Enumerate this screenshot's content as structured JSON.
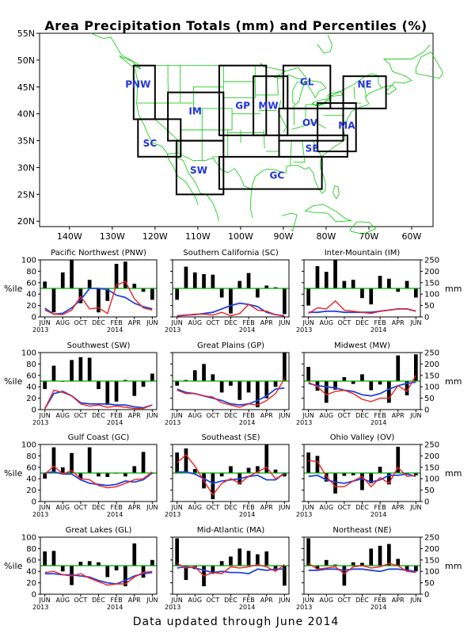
{
  "title": "Area Precipitation Totals (mm) and Percentiles (%)",
  "footer": "Data updated through June 2014",
  "map": {
    "lat_labels": [
      "55N",
      "50N",
      "45N",
      "40N",
      "35N",
      "30N",
      "25N",
      "20N"
    ],
    "lon_labels": [
      "140W",
      "130W",
      "120W",
      "110W",
      "100W",
      "90W",
      "80W",
      "70W",
      "60W"
    ],
    "regions": [
      {
        "code": "PNW",
        "name": "Pacific Northwest"
      },
      {
        "code": "SC",
        "name": "Southern California"
      },
      {
        "code": "IM",
        "name": "Inter-Mountain"
      },
      {
        "code": "SW",
        "name": "Southwest"
      },
      {
        "code": "GP",
        "name": "Great Plains"
      },
      {
        "code": "MW",
        "name": "Midwest"
      },
      {
        "code": "GC",
        "name": "Gulf Coast"
      },
      {
        "code": "SE",
        "name": "Southeast"
      },
      {
        "code": "OV",
        "name": "Ohio Valley"
      },
      {
        "code": "GL",
        "name": "Great Lakes"
      },
      {
        "code": "MA",
        "name": "Mid-Atlantic"
      },
      {
        "code": "NE",
        "name": "Northeast"
      }
    ],
    "colors": {
      "region_label": "#2233dd",
      "coast": "#22cc22",
      "box": "#000000"
    }
  },
  "panel_labels": {
    "left_unit": "%ile",
    "right_unit": "mm",
    "y_left_ticks": [
      "0",
      "20",
      "40",
      "60",
      "80",
      "100"
    ],
    "y_right_ticks": [
      "0",
      "50",
      "100",
      "150",
      "200",
      "250"
    ],
    "x_ticks": [
      "JUN",
      "AUG",
      "OCT",
      "DEC",
      "FEB",
      "APR",
      "JUN"
    ],
    "year_start": "2013",
    "year_mid": "2014"
  },
  "colors": {
    "bars": "#000000",
    "observed": "#ee2222",
    "normal": "#2244dd",
    "median": "#00aa00"
  },
  "chart_data": [
    {
      "type": "bar",
      "title": "Pacific Northwest (PNW)",
      "months": [
        "2013-06",
        "2013-07",
        "2013-08",
        "2013-09",
        "2013-10",
        "2013-11",
        "2013-12",
        "2014-01",
        "2014-02",
        "2014-03",
        "2014-04",
        "2014-05",
        "2014-06"
      ],
      "percentile": [
        62,
        8,
        78,
        100,
        24,
        65,
        8,
        28,
        93,
        97,
        58,
        44,
        30
      ],
      "precip_mm": [
        30,
        12,
        10,
        30,
        90,
        35,
        40,
        15,
        140,
        155,
        80,
        40,
        30
      ],
      "normal_mm": [
        38,
        12,
        16,
        40,
        75,
        125,
        125,
        120,
        95,
        85,
        60,
        45,
        35
      ]
    },
    {
      "type": "bar",
      "title": "Southern California (SC)",
      "months": [
        "2013-06",
        "2013-07",
        "2013-08",
        "2013-09",
        "2013-10",
        "2013-11",
        "2013-12",
        "2014-01",
        "2014-02",
        "2014-03",
        "2014-04",
        "2014-05",
        "2014-06"
      ],
      "percentile": [
        30,
        88,
        78,
        75,
        74,
        34,
        6,
        63,
        77,
        34,
        55,
        52,
        5
      ],
      "precip_mm": [
        3,
        8,
        12,
        12,
        8,
        20,
        5,
        15,
        55,
        30,
        25,
        10,
        3
      ],
      "normal_mm": [
        5,
        8,
        10,
        15,
        20,
        35,
        50,
        60,
        55,
        45,
        20,
        10,
        5
      ]
    },
    {
      "type": "bar",
      "title": "Inter-Mountain (IM)",
      "months": [
        "2013-06",
        "2013-07",
        "2013-08",
        "2013-09",
        "2013-10",
        "2013-11",
        "2013-12",
        "2014-01",
        "2014-02",
        "2014-03",
        "2014-04",
        "2014-05",
        "2014-06"
      ],
      "percentile": [
        20,
        89,
        79,
        100,
        63,
        65,
        33,
        22,
        72,
        67,
        44,
        63,
        34
      ],
      "precip_mm": [
        15,
        40,
        35,
        70,
        30,
        25,
        20,
        15,
        25,
        30,
        35,
        35,
        25
      ],
      "normal_mm": [
        20,
        20,
        25,
        25,
        20,
        20,
        20,
        20,
        25,
        30,
        35,
        35,
        25
      ]
    },
    {
      "type": "bar",
      "title": "Southwest (SW)",
      "months": [
        "2013-06",
        "2013-07",
        "2013-08",
        "2013-09",
        "2013-10",
        "2013-11",
        "2013-12",
        "2014-01",
        "2014-02",
        "2014-03",
        "2014-04",
        "2014-05",
        "2014-06"
      ],
      "percentile": [
        36,
        77,
        50,
        87,
        92,
        91,
        36,
        8,
        14,
        52,
        24,
        40,
        63
      ],
      "precip_mm": [
        3,
        85,
        75,
        60,
        25,
        15,
        20,
        10,
        15,
        10,
        5,
        5,
        20
      ],
      "normal_mm": [
        5,
        70,
        80,
        60,
        30,
        25,
        25,
        25,
        20,
        20,
        12,
        8,
        20
      ]
    },
    {
      "type": "bar",
      "title": "Great Plains (GP)",
      "months": [
        "2013-06",
        "2013-07",
        "2013-08",
        "2013-09",
        "2013-10",
        "2013-11",
        "2013-12",
        "2014-01",
        "2014-02",
        "2014-03",
        "2014-04",
        "2014-05",
        "2014-06"
      ],
      "percentile": [
        42,
        52,
        69,
        80,
        62,
        30,
        42,
        17,
        30,
        4,
        20,
        40,
        100
      ],
      "precip_mm": [
        85,
        70,
        70,
        60,
        55,
        30,
        20,
        10,
        25,
        20,
        40,
        70,
        135
      ],
      "normal_mm": [
        90,
        75,
        70,
        60,
        50,
        40,
        25,
        20,
        25,
        40,
        60,
        90,
        95
      ]
    },
    {
      "type": "bar",
      "title": "Midwest (MW)",
      "months": [
        "2013-06",
        "2013-07",
        "2013-08",
        "2013-09",
        "2013-10",
        "2013-11",
        "2013-12",
        "2014-01",
        "2014-02",
        "2014-03",
        "2014-04",
        "2014-05",
        "2014-06"
      ],
      "percentile": [
        75,
        33,
        12,
        35,
        57,
        45,
        62,
        34,
        44,
        12,
        95,
        25,
        97
      ],
      "precip_mm": [
        120,
        100,
        65,
        80,
        85,
        70,
        45,
        35,
        50,
        50,
        105,
        80,
        150
      ],
      "normal_mm": [
        115,
        105,
        100,
        95,
        85,
        80,
        65,
        60,
        70,
        90,
        105,
        115,
        120
      ]
    },
    {
      "type": "bar",
      "title": "Gulf Coast (GC)",
      "months": [
        "2013-06",
        "2013-07",
        "2013-08",
        "2013-09",
        "2013-10",
        "2013-11",
        "2013-12",
        "2014-01",
        "2014-02",
        "2014-03",
        "2014-04",
        "2014-05",
        "2014-06"
      ],
      "percentile": [
        40,
        95,
        60,
        85,
        40,
        95,
        44,
        43,
        50,
        44,
        62,
        87,
        50
      ],
      "precip_mm": [
        120,
        155,
        120,
        135,
        100,
        95,
        70,
        60,
        65,
        80,
        95,
        100,
        130
      ],
      "normal_mm": [
        125,
        130,
        120,
        120,
        95,
        80,
        75,
        70,
        75,
        90,
        85,
        95,
        125
      ]
    },
    {
      "type": "bar",
      "title": "Southeast (SE)",
      "months": [
        "2013-06",
        "2013-07",
        "2013-08",
        "2013-09",
        "2013-10",
        "2013-11",
        "2013-12",
        "2014-01",
        "2014-02",
        "2014-03",
        "2014-04",
        "2014-05",
        "2014-06"
      ],
      "percentile": [
        86,
        93,
        57,
        23,
        4,
        44,
        62,
        30,
        59,
        62,
        100,
        56,
        44
      ],
      "precip_mm": [
        170,
        205,
        155,
        90,
        30,
        80,
        100,
        80,
        110,
        130,
        150,
        100,
        120
      ],
      "normal_mm": [
        130,
        130,
        120,
        100,
        80,
        90,
        95,
        100,
        110,
        115,
        95,
        95,
        125
      ]
    },
    {
      "type": "bar",
      "title": "Ohio Valley (OV)",
      "months": [
        "2013-06",
        "2013-07",
        "2013-08",
        "2013-09",
        "2013-10",
        "2013-11",
        "2013-12",
        "2014-01",
        "2014-02",
        "2014-03",
        "2014-04",
        "2014-05",
        "2014-06"
      ],
      "percentile": [
        86,
        80,
        35,
        14,
        45,
        46,
        20,
        32,
        61,
        30,
        96,
        47,
        46
      ],
      "precip_mm": [
        180,
        175,
        110,
        65,
        65,
        90,
        110,
        65,
        105,
        80,
        150,
        110,
        115
      ],
      "normal_mm": [
        110,
        115,
        95,
        85,
        80,
        90,
        100,
        85,
        95,
        115,
        115,
        120,
        110
      ]
    },
    {
      "type": "bar",
      "title": "Great Lakes (GL)",
      "months": [
        "2013-06",
        "2013-07",
        "2013-08",
        "2013-09",
        "2013-10",
        "2013-11",
        "2013-12",
        "2014-01",
        "2014-02",
        "2014-03",
        "2014-04",
        "2014-05",
        "2014-06"
      ],
      "percentile": [
        75,
        76,
        40,
        16,
        57,
        58,
        56,
        30,
        42,
        14,
        89,
        29,
        60
      ],
      "precip_mm": [
        95,
        100,
        85,
        80,
        90,
        70,
        55,
        40,
        45,
        45,
        75,
        95,
        100
      ],
      "normal_mm": [
        90,
        90,
        85,
        85,
        80,
        75,
        60,
        50,
        45,
        60,
        80,
        90,
        95
      ]
    },
    {
      "type": "bar",
      "title": "Mid-Atlantic (MA)",
      "months": [
        "2013-06",
        "2013-07",
        "2013-08",
        "2013-09",
        "2013-10",
        "2013-11",
        "2013-12",
        "2014-01",
        "2014-02",
        "2014-03",
        "2014-04",
        "2014-05",
        "2014-06"
      ],
      "percentile": [
        98,
        25,
        44,
        14,
        36,
        58,
        66,
        80,
        76,
        70,
        75,
        42,
        15
      ],
      "precip_mm": [
        135,
        115,
        120,
        80,
        95,
        90,
        120,
        115,
        120,
        130,
        120,
        100,
        130
      ],
      "normal_mm": [
        115,
        120,
        115,
        105,
        95,
        100,
        95,
        95,
        90,
        110,
        105,
        110,
        110
      ]
    },
    {
      "type": "bar",
      "title": "Northeast (NE)",
      "months": [
        "2013-06",
        "2013-07",
        "2013-08",
        "2013-09",
        "2013-10",
        "2013-11",
        "2013-12",
        "2014-01",
        "2014-02",
        "2014-03",
        "2014-04",
        "2014-05",
        "2014-06"
      ],
      "percentile": [
        98,
        44,
        60,
        52,
        15,
        56,
        55,
        80,
        85,
        88,
        62,
        42,
        40
      ],
      "precip_mm": [
        135,
        110,
        115,
        120,
        90,
        120,
        125,
        115,
        120,
        135,
        125,
        100,
        95
      ],
      "normal_mm": [
        105,
        105,
        110,
        110,
        105,
        110,
        110,
        105,
        100,
        110,
        110,
        105,
        100
      ]
    }
  ]
}
